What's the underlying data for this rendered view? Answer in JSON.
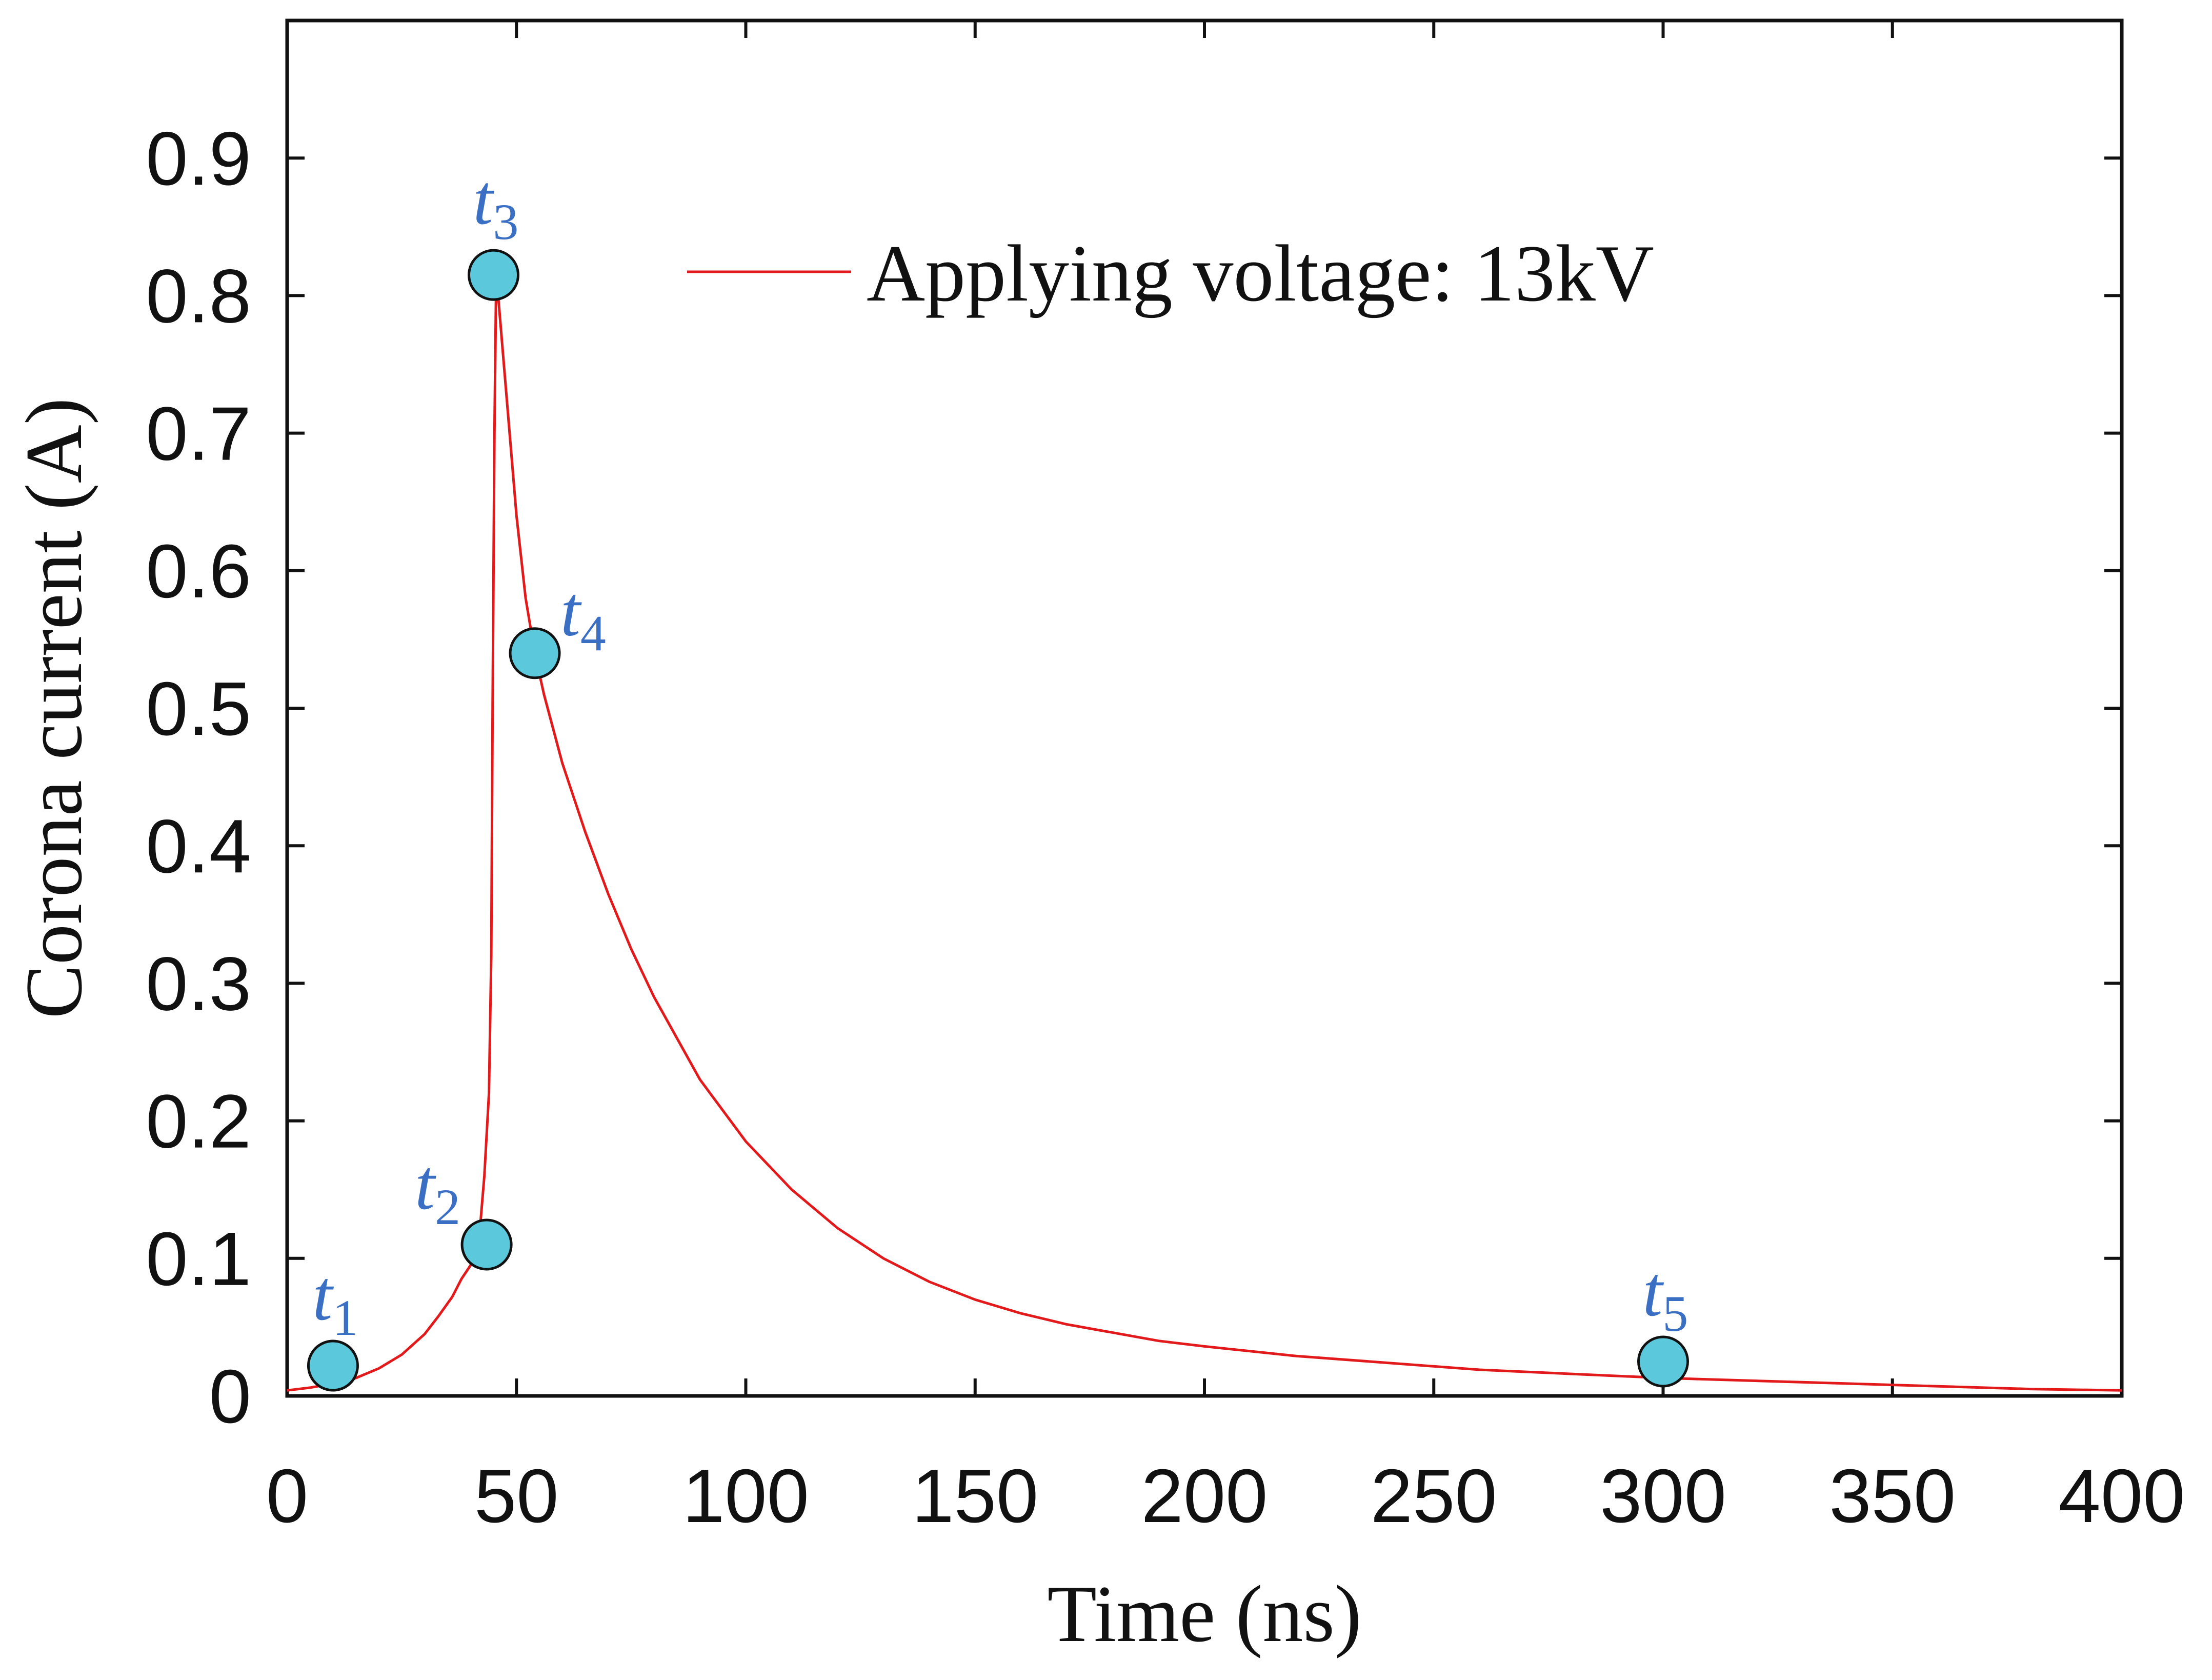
{
  "chart_data": {
    "type": "line",
    "title": "",
    "xlabel": "Time (ns)",
    "ylabel": "Corona current (A)",
    "xlim": [
      0,
      400
    ],
    "ylim": [
      0,
      1.0
    ],
    "grid": false,
    "legend_position": "top-right",
    "x_ticks": [
      0,
      50,
      100,
      150,
      200,
      250,
      300,
      350,
      400
    ],
    "x_tick_labels": [
      "0",
      "50",
      "100",
      "150",
      "200",
      "250",
      "300",
      "350",
      "400"
    ],
    "y_ticks": [
      0,
      0.1,
      0.2,
      0.3,
      0.4,
      0.5,
      0.6,
      0.7,
      0.8,
      0.9
    ],
    "y_tick_labels": [
      "0",
      "0.1",
      "0.2",
      "0.3",
      "0.4",
      "0.5",
      "0.6",
      "0.7",
      "0.8",
      "0.9"
    ],
    "series": [
      {
        "name": "Applying voltage: 13kV",
        "color": "#e31a1c",
        "x": [
          0,
          5,
          10,
          15,
          20,
          25,
          30,
          33,
          36,
          38,
          40,
          42,
          43,
          44,
          44.5,
          44.8,
          45.2,
          45.6,
          46,
          48,
          50,
          52,
          54,
          56,
          60,
          65,
          70,
          75,
          80,
          90,
          100,
          110,
          120,
          130,
          140,
          150,
          160,
          170,
          180,
          190,
          200,
          220,
          240,
          260,
          280,
          300,
          320,
          340,
          360,
          380,
          400
        ],
        "y": [
          0.004,
          0.006,
          0.009,
          0.013,
          0.02,
          0.03,
          0.045,
          0.058,
          0.072,
          0.085,
          0.095,
          0.12,
          0.16,
          0.22,
          0.32,
          0.5,
          0.7,
          0.82,
          0.8,
          0.72,
          0.64,
          0.58,
          0.54,
          0.51,
          0.46,
          0.41,
          0.365,
          0.325,
          0.29,
          0.23,
          0.185,
          0.15,
          0.122,
          0.1,
          0.083,
          0.07,
          0.06,
          0.052,
          0.046,
          0.04,
          0.036,
          0.029,
          0.024,
          0.019,
          0.016,
          0.013,
          0.011,
          0.009,
          0.007,
          0.005,
          0.004
        ]
      }
    ],
    "markers": [
      {
        "label": "t",
        "subscript": "1",
        "x": 10,
        "y": 0.022
      },
      {
        "label": "t",
        "subscript": "2",
        "x": 43.5,
        "y": 0.11
      },
      {
        "label": "t",
        "subscript": "3",
        "x": 45,
        "y": 0.815
      },
      {
        "label": "t",
        "subscript": "4",
        "x": 54,
        "y": 0.54
      },
      {
        "label": "t",
        "subscript": "5",
        "x": 300,
        "y": 0.025
      }
    ],
    "marker_color": "#5bc8dc"
  }
}
